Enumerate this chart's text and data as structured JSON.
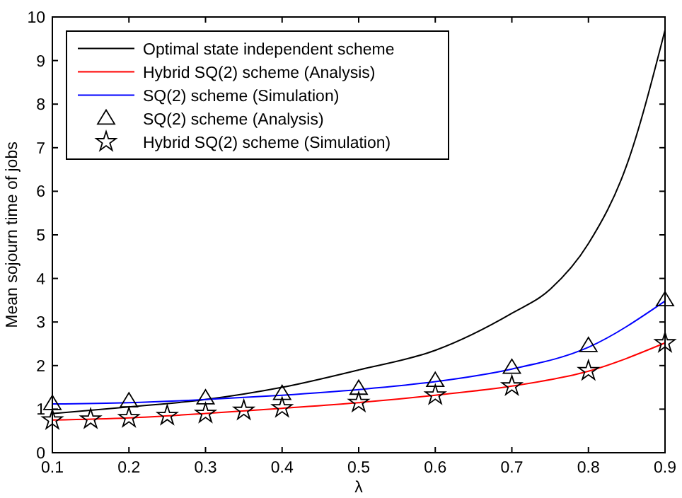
{
  "chart_data": {
    "type": "line",
    "xlabel": "λ",
    "ylabel": "Mean sojourn time of jobs",
    "xlim": [
      0.1,
      0.9
    ],
    "ylim": [
      0,
      10
    ],
    "xticks": [
      {
        "value": 0.1,
        "label": "0.1"
      },
      {
        "value": 0.2,
        "label": "0.2"
      },
      {
        "value": 0.3,
        "label": "0.3"
      },
      {
        "value": 0.4,
        "label": "0.4"
      },
      {
        "value": 0.5,
        "label": "0.5"
      },
      {
        "value": 0.6,
        "label": "0.6"
      },
      {
        "value": 0.7,
        "label": "0.7"
      },
      {
        "value": 0.8,
        "label": "0.8"
      },
      {
        "value": 0.9,
        "label": "0.9"
      }
    ],
    "yticks": [
      0,
      1,
      2,
      3,
      4,
      5,
      6,
      7,
      8,
      9,
      10
    ],
    "grid": false,
    "legend": "top left",
    "series": [
      {
        "name": "Optimal state independent scheme",
        "color": "#000000",
        "marker": "none",
        "x": [
          0.1,
          0.2,
          0.3,
          0.4,
          0.5,
          0.6,
          0.7,
          0.75,
          0.8,
          0.85,
          0.9
        ],
        "values": [
          0.9,
          1.05,
          1.22,
          1.5,
          1.9,
          2.35,
          3.2,
          3.75,
          4.8,
          6.6,
          9.7
        ]
      },
      {
        "name": "Hybrid SQ(2) scheme (Analysis)",
        "color": "#ff0000",
        "marker": "none",
        "x": [
          0.1,
          0.2,
          0.3,
          0.4,
          0.5,
          0.6,
          0.7,
          0.8,
          0.9
        ],
        "values": [
          0.75,
          0.8,
          0.9,
          1.02,
          1.15,
          1.32,
          1.53,
          1.87,
          2.52
        ]
      },
      {
        "name": "SQ(2) scheme (Simulation)",
        "color": "#0000ff",
        "marker": "none",
        "x": [
          0.1,
          0.2,
          0.3,
          0.4,
          0.5,
          0.6,
          0.7,
          0.8,
          0.9
        ],
        "values": [
          1.12,
          1.15,
          1.22,
          1.32,
          1.45,
          1.63,
          1.92,
          2.42,
          3.48
        ]
      },
      {
        "name": "SQ(2) scheme (Analysis)",
        "type": "scatter",
        "color": "#000000",
        "marker": "triangle",
        "x": [
          0.1,
          0.2,
          0.3,
          0.4,
          0.5,
          0.6,
          0.7,
          0.8,
          0.9
        ],
        "values": [
          1.12,
          1.18,
          1.25,
          1.35,
          1.47,
          1.65,
          1.95,
          2.45,
          3.5
        ]
      },
      {
        "name": "Hybrid SQ(2) scheme (Simulation)",
        "type": "scatter",
        "color": "#000000",
        "marker": "star",
        "x": [
          0.1,
          0.15,
          0.2,
          0.25,
          0.3,
          0.35,
          0.4,
          0.5,
          0.6,
          0.7,
          0.8,
          0.9
        ],
        "values": [
          0.75,
          0.77,
          0.8,
          0.85,
          0.9,
          0.97,
          1.03,
          1.15,
          1.32,
          1.53,
          1.88,
          2.52
        ]
      }
    ]
  }
}
